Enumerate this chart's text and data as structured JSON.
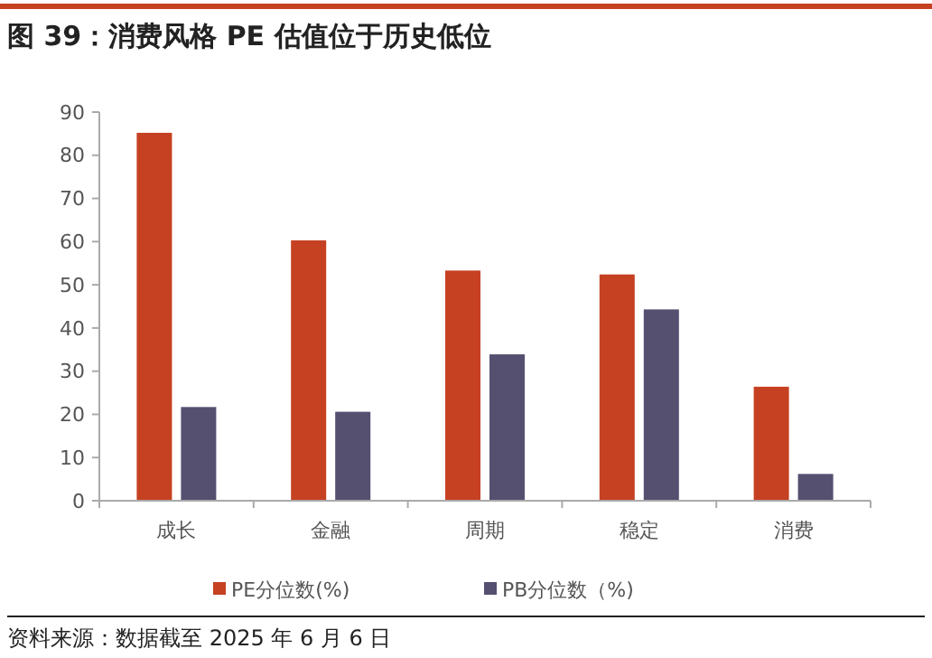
{
  "chart_data": {
    "type": "bar",
    "title": "图 39：消费风格 PE 估值位于历史低位",
    "categories": [
      "成长",
      "金融",
      "周期",
      "稳定",
      "消费"
    ],
    "series": [
      {
        "name": "PE分位数(%)",
        "color": "#c54122",
        "values": [
          85.2,
          60.3,
          53.3,
          52.4,
          26.4
        ]
      },
      {
        "name": "PB分位数（%)",
        "color": "#554f70",
        "values": [
          21.7,
          20.6,
          33.9,
          44.3,
          6.2
        ]
      }
    ],
    "ylim": [
      0,
      90
    ],
    "yticks": [
      0,
      10,
      20,
      30,
      40,
      50,
      60,
      70,
      80,
      90
    ],
    "grid": false,
    "legend": "bottom",
    "annotations": [
      "资料来源：数据截至 2025 年 6 月 6 日"
    ]
  }
}
